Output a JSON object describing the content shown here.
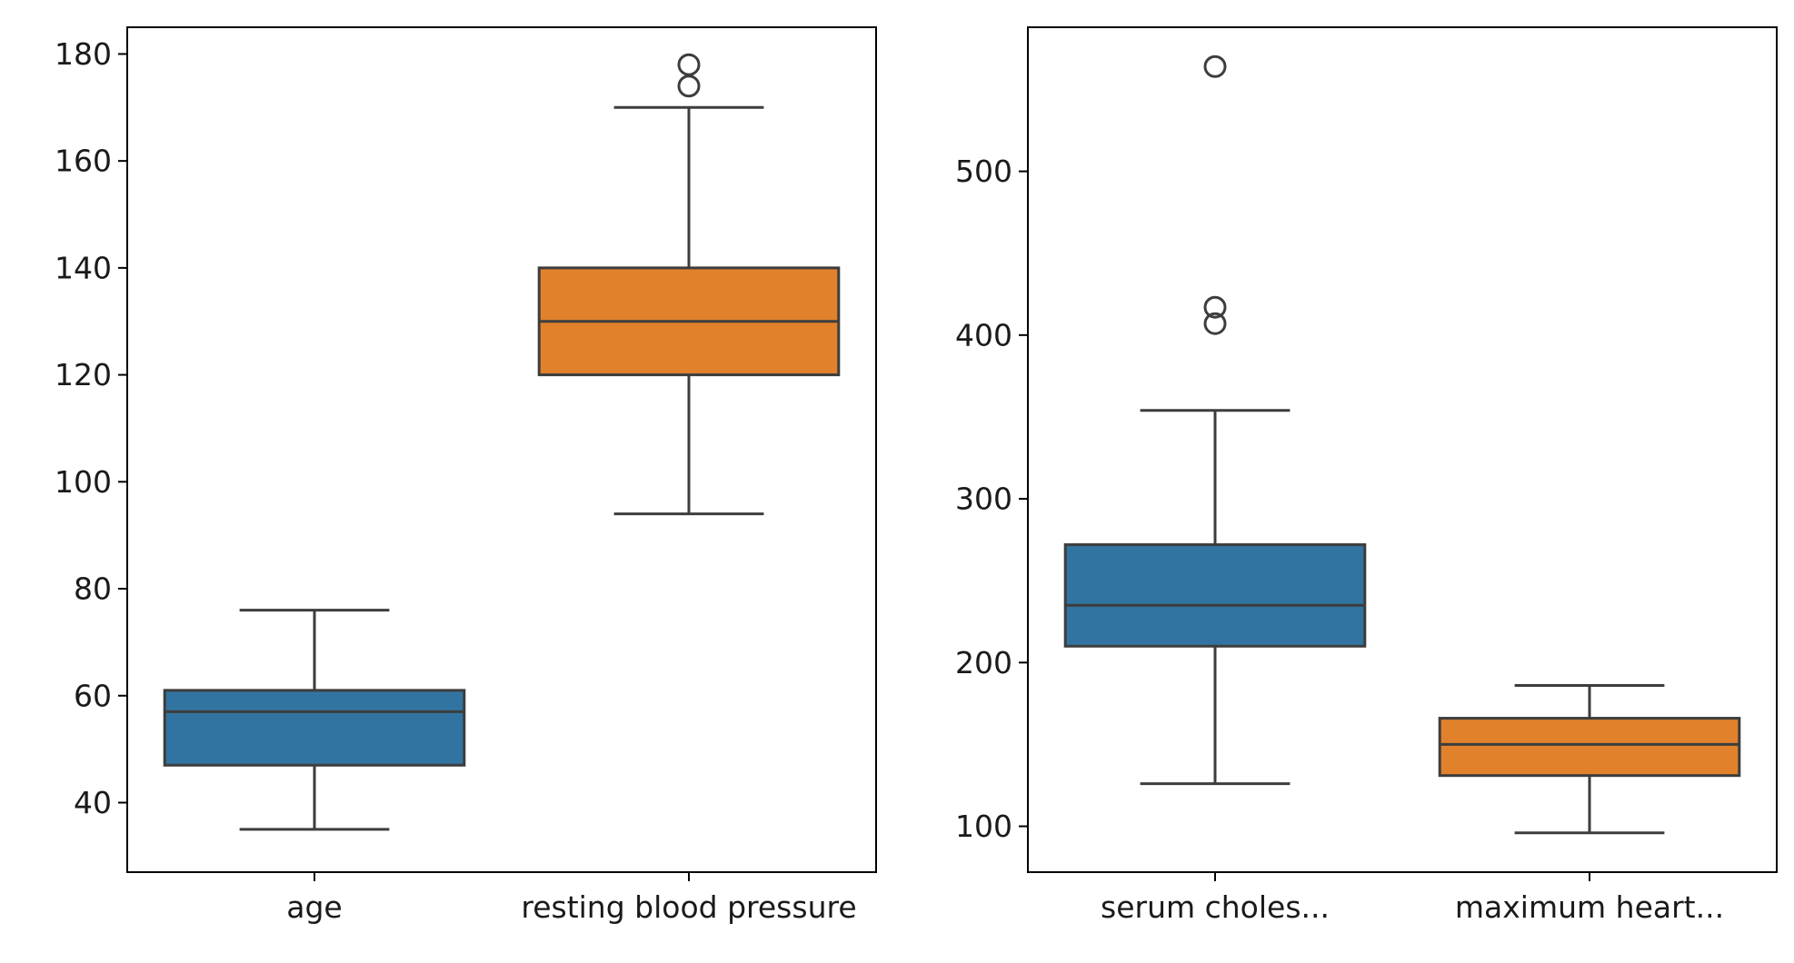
{
  "chart_data": [
    {
      "type": "box",
      "title": "",
      "xlabel": "",
      "ylabel": "",
      "ylim": [
        27,
        185
      ],
      "yticks": [
        40,
        60,
        80,
        100,
        120,
        140,
        160,
        180
      ],
      "grid": false,
      "categories": [
        "age",
        "resting blood pressure"
      ],
      "boxes": [
        {
          "label": "age",
          "color": "#3274a1",
          "whisker_low": 35,
          "q1": 47,
          "median": 57,
          "q3": 61,
          "whisker_high": 76,
          "outliers": []
        },
        {
          "label": "resting blood pressure",
          "color": "#e1812c",
          "whisker_low": 94,
          "q1": 120,
          "median": 130,
          "q3": 140,
          "whisker_high": 170,
          "outliers": [
            174,
            178
          ]
        }
      ]
    },
    {
      "type": "box",
      "title": "",
      "xlabel": "",
      "ylabel": "",
      "ylim": [
        72,
        588
      ],
      "yticks": [
        100,
        200,
        300,
        400,
        500
      ],
      "grid": false,
      "categories": [
        "serum choles...",
        "maximum heart..."
      ],
      "boxes": [
        {
          "label": "serum choles...",
          "color": "#3274a1",
          "whisker_low": 126,
          "q1": 210,
          "median": 235,
          "q3": 272,
          "whisker_high": 354,
          "outliers": [
            407,
            417,
            564
          ]
        },
        {
          "label": "maximum heart...",
          "color": "#e1812c",
          "whisker_low": 96,
          "q1": 131,
          "median": 150,
          "q3": 166,
          "whisker_high": 186,
          "outliers": []
        }
      ]
    }
  ]
}
